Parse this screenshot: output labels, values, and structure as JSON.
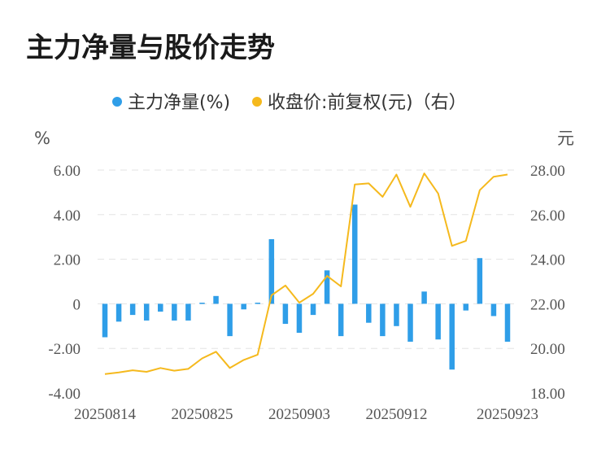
{
  "chart_data": {
    "type": "bar+line",
    "title": "主力净量与股价走势",
    "legend_position": "top-center",
    "grid": true,
    "left_unit": "%",
    "right_unit": "元",
    "colors": {
      "bar": "#2f9ee8",
      "line": "#f5b91d"
    },
    "series": [
      {
        "name": "主力净量(%)",
        "type": "bar",
        "axis": "left",
        "values": [
          -1.5,
          -0.8,
          -0.5,
          -0.75,
          -0.35,
          -0.75,
          -0.75,
          0.05,
          0.35,
          -1.45,
          -0.25,
          0.05,
          2.9,
          -0.9,
          -1.3,
          -0.5,
          1.5,
          -1.45,
          4.45,
          -0.85,
          -1.45,
          -1.0,
          -1.7,
          0.55,
          -1.6,
          -2.95,
          -0.3,
          2.05,
          -0.55,
          -1.7
        ]
      },
      {
        "name": "收盘价:前复权(元)（右）",
        "type": "line",
        "axis": "right",
        "values": [
          18.85,
          18.92,
          19.02,
          18.95,
          19.12,
          19.0,
          19.08,
          19.55,
          19.85,
          19.12,
          19.48,
          19.72,
          22.38,
          22.82,
          22.05,
          22.45,
          23.25,
          22.78,
          27.35,
          27.4,
          26.8,
          27.8,
          26.35,
          27.85,
          26.95,
          24.6,
          24.82,
          27.1,
          27.7,
          27.8
        ]
      }
    ],
    "y_left": {
      "min": -4,
      "max": 6,
      "ticks": [
        "6.00",
        "4.00",
        "2.00",
        "0",
        "-2.00",
        "-4.00"
      ]
    },
    "y_right": {
      "min": 18,
      "max": 28,
      "ticks": [
        "28.00",
        "26.00",
        "24.00",
        "22.00",
        "20.00",
        "18.00"
      ]
    },
    "x_ticks": [
      {
        "index": 0,
        "label": "20250814"
      },
      {
        "index": 7,
        "label": "20250825"
      },
      {
        "index": 14,
        "label": "20250903"
      },
      {
        "index": 21,
        "label": "20250912"
      },
      {
        "index": 29,
        "label": "20250923"
      }
    ]
  }
}
